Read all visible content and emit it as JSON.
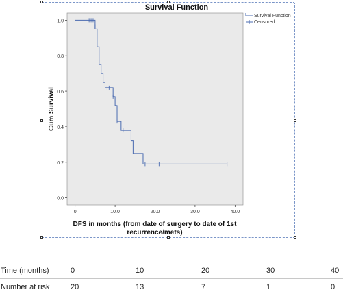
{
  "chart_data": {
    "type": "line",
    "title": "Survival Function",
    "xlabel": "DFS in months (from date of surgery to date of 1st recurrence/mets)",
    "xlabel_lines": [
      "DFS in months (from date of surgery to date of 1st",
      "recurrence/mets)"
    ],
    "ylabel": "Cum Survival",
    "xlim": [
      -2,
      42
    ],
    "ylim": [
      -0.04,
      1.04
    ],
    "xticks": [
      "0",
      "10.0",
      "20.0",
      "30.0",
      "40.0"
    ],
    "xtick_values": [
      0,
      10,
      20,
      30,
      40
    ],
    "yticks": [
      "0.0",
      "0.2",
      "0.4",
      "0.6",
      "0.8",
      "1.0"
    ],
    "ytick_values": [
      0,
      0.2,
      0.4,
      0.6,
      0.8,
      1.0
    ],
    "legend": {
      "position": "top-right",
      "entries": [
        "Survival Function",
        "Censored"
      ]
    },
    "series": [
      {
        "name": "Survival Function",
        "color": "#4a6bb0",
        "steps": [
          [
            0,
            1.0
          ],
          [
            5.0,
            0.95
          ],
          [
            5.5,
            0.85
          ],
          [
            6.0,
            0.75
          ],
          [
            6.5,
            0.7
          ],
          [
            7.0,
            0.65
          ],
          [
            7.5,
            0.62
          ],
          [
            9.5,
            0.57
          ],
          [
            10.0,
            0.52
          ],
          [
            10.5,
            0.43
          ],
          [
            11.5,
            0.38
          ],
          [
            14.0,
            0.32
          ],
          [
            14.5,
            0.25
          ],
          [
            17.0,
            0.19
          ],
          [
            38.0,
            0.19
          ]
        ]
      },
      {
        "name": "Censored",
        "color": "#4a6bb0",
        "points": [
          [
            3.5,
            1.0
          ],
          [
            4.0,
            1.0
          ],
          [
            4.5,
            1.0
          ],
          [
            5.0,
            0.965
          ],
          [
            8.0,
            0.62
          ],
          [
            8.5,
            0.62
          ],
          [
            9.5,
            0.57
          ],
          [
            10.5,
            0.43
          ],
          [
            12.0,
            0.38
          ],
          [
            17.5,
            0.19
          ],
          [
            21.0,
            0.19
          ],
          [
            38.0,
            0.19
          ]
        ]
      }
    ],
    "colors": {
      "plot_bg": "#eaeaea",
      "axis": "#333333",
      "line": "#4a6bb0"
    }
  },
  "risk_table": {
    "header_label": "Time (months)",
    "headers": [
      "0",
      "10",
      "20",
      "30",
      "40"
    ],
    "row_label": "Number at risk",
    "values": [
      "20",
      "13",
      "7",
      "1",
      "0"
    ]
  }
}
